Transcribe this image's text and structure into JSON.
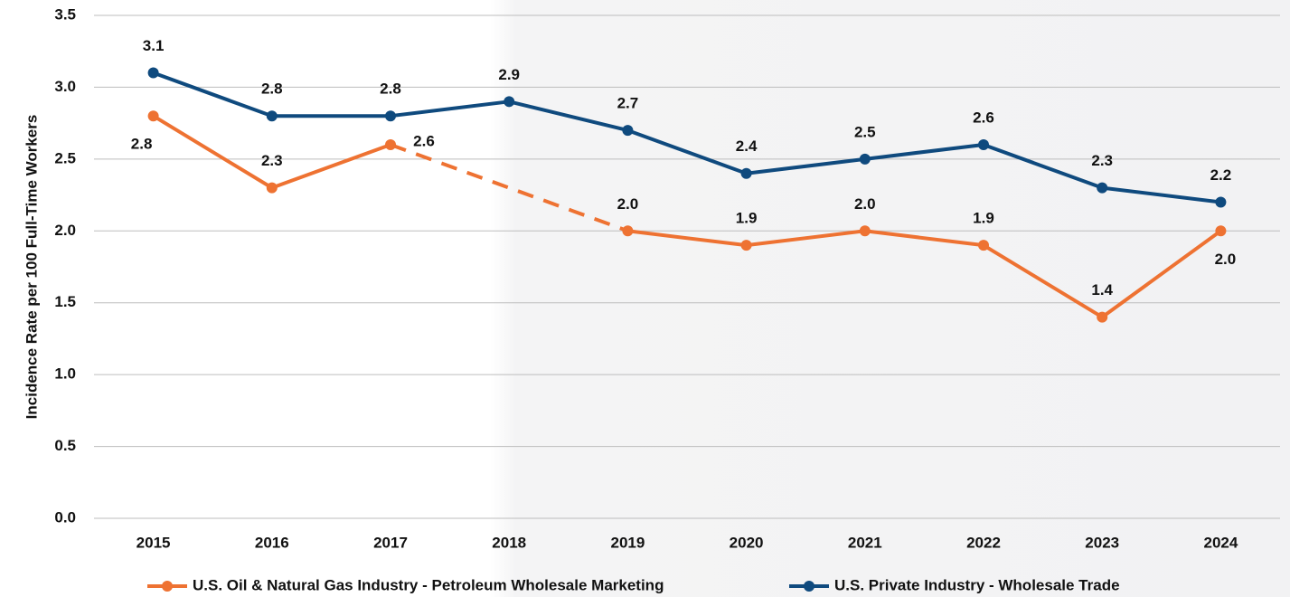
{
  "chart_data": {
    "type": "line",
    "y_label": "Incidence Rate per 100 Full-Time Workers",
    "categories": [
      "2015",
      "2016",
      "2017",
      "2018",
      "2019",
      "2020",
      "2021",
      "2022",
      "2023",
      "2024"
    ],
    "series": [
      {
        "name": "U.S. Oil & Natural Gas Industry - Petroleum Wholesale Marketing",
        "color": "#ee7232",
        "values": [
          2.8,
          2.3,
          2.6,
          null,
          2.0,
          1.9,
          2.0,
          1.9,
          1.4,
          2.0
        ],
        "value_labels": [
          "2.8",
          "2.3",
          "2.6",
          null,
          "2.0",
          "1.9",
          "2.0",
          "1.9",
          "1.4",
          "2.0"
        ],
        "gap_line": "dashed"
      },
      {
        "name": "U.S. Private Industry - Wholesale Trade",
        "color": "#0f4a7e",
        "values": [
          3.1,
          2.8,
          2.8,
          2.9,
          2.7,
          2.4,
          2.5,
          2.6,
          2.3,
          2.2
        ],
        "value_labels": [
          "3.1",
          "2.8",
          "2.8",
          "2.9",
          "2.7",
          "2.4",
          "2.5",
          "2.6",
          "2.3",
          "2.2"
        ]
      }
    ],
    "ylim": [
      0,
      3.5
    ],
    "yticks": [
      {
        "value": 0,
        "label": "0.0"
      },
      0.5,
      {
        "value": 1,
        "label": "1.0"
      },
      1.5,
      {
        "value": 2,
        "label": "2.0"
      },
      2.5,
      {
        "value": 3,
        "label": "3.0"
      },
      3.5
    ],
    "grid": true,
    "legend": "bottom"
  }
}
